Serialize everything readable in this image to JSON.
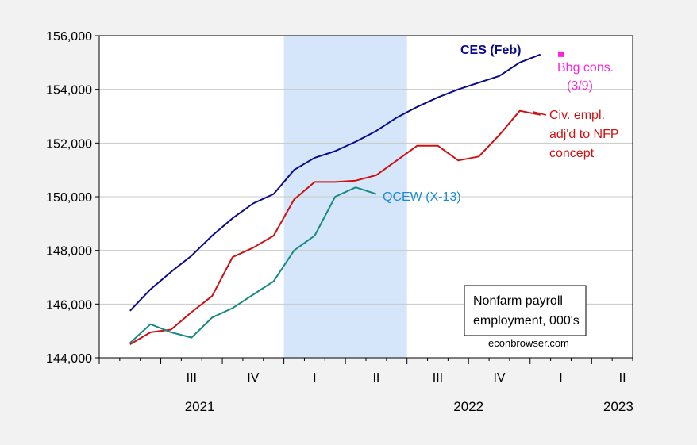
{
  "chart_data": {
    "type": "line",
    "x": [
      "2021-05",
      "2021-06",
      "2021-07",
      "2021-08",
      "2021-09",
      "2021-10",
      "2021-11",
      "2021-12",
      "2022-01",
      "2022-02",
      "2022-03",
      "2022-04",
      "2022-05",
      "2022-06",
      "2022-07",
      "2022-08",
      "2022-09",
      "2022-10",
      "2022-11",
      "2022-12",
      "2023-01",
      "2023-02"
    ],
    "series": [
      {
        "name": "CES (Feb)",
        "color": "#0a0a8c",
        "values": [
          145750,
          146550,
          147200,
          147800,
          148550,
          149200,
          149750,
          150100,
          151000,
          151450,
          151700,
          152050,
          152450,
          152950,
          153350,
          153700,
          154000,
          154250,
          154500,
          155000,
          155300,
          null
        ]
      },
      {
        "name": "Civ. empl. adj'd to NFP concept",
        "color": "#cc1111",
        "values": [
          144500,
          144950,
          145050,
          145700,
          146300,
          147750,
          148100,
          148550,
          149900,
          150550,
          150550,
          150600,
          150800,
          151350,
          151900,
          151900,
          151350,
          151500,
          152300,
          153200,
          153050,
          null
        ]
      },
      {
        "name": "QCEW (X-13)",
        "color": "#178a84",
        "values": [
          144550,
          145250,
          144950,
          144750,
          145500,
          145850,
          146350,
          146850,
          148000,
          148550,
          150000,
          150350,
          150100,
          null,
          null,
          null,
          null,
          null,
          null,
          null,
          null,
          null
        ]
      }
    ],
    "points": [
      {
        "name": "Bbg cons. (3/9)",
        "x": "2023-02",
        "value": 155310,
        "color": "#ff22dd"
      }
    ],
    "series_labels": {
      "ces": "CES (Feb)",
      "civ": [
        "Civ. empl.",
        "adj'd to NFP",
        "concept"
      ],
      "qcew": "QCEW (X-13)",
      "bbg": [
        "Bbg cons.",
        "(3/9)"
      ]
    },
    "ylim": [
      144000,
      156000
    ],
    "y_ticks": [
      144000,
      146000,
      148000,
      150000,
      152000,
      154000,
      156000
    ],
    "y_tick_labels": [
      "144,000",
      "146,000",
      "148,000",
      "150,000",
      "152,000",
      "154,000",
      "156,000"
    ],
    "quarter_labels": [
      "III",
      "IV",
      "I",
      "II",
      "III",
      "IV",
      "I",
      "II"
    ],
    "year_labels": [
      "2021",
      "2022",
      "2023"
    ],
    "shaded_region": {
      "from": "2022-01",
      "to": "2022-06",
      "color": "#d6e6fa"
    },
    "grid": true,
    "annotation": [
      "Nonfarm payroll",
      "employment, 000's"
    ],
    "source": "econbrowser.com"
  }
}
